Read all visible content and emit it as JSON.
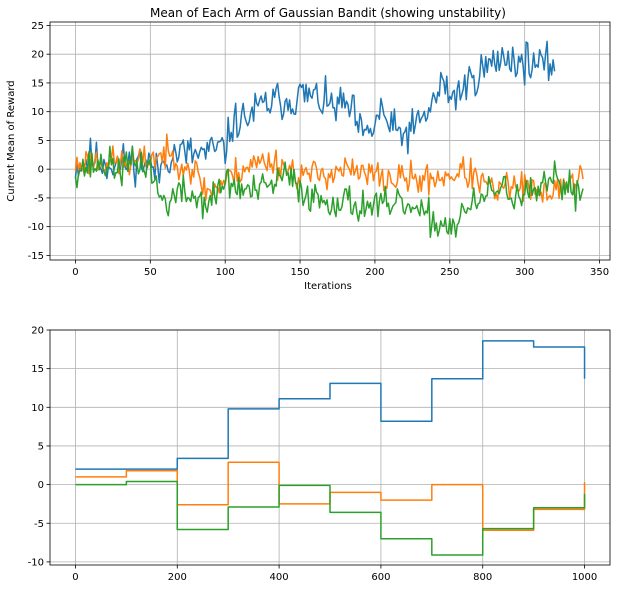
{
  "chart_data": [
    {
      "type": "line",
      "title": "Mean of Each Arm of Gaussian Bandit (showing unstability)",
      "xlabel": "Iterations",
      "ylabel": "Current Mean of Reward",
      "xlim": [
        -17,
        357
      ],
      "ylim": [
        -15.8,
        25.6
      ],
      "xticks": [
        0,
        50,
        100,
        150,
        200,
        250,
        300,
        350
      ],
      "yticks": [
        -15,
        -10,
        -5,
        0,
        5,
        10,
        15,
        20,
        25
      ],
      "grid": true,
      "series": [
        {
          "color": "#1f77b4",
          "n": 321,
          "anchors": [
            [
              0,
              0.5
            ],
            [
              10,
              2
            ],
            [
              20,
              1
            ],
            [
              30,
              1
            ],
            [
              40,
              1.5
            ],
            [
              50,
              1
            ],
            [
              55,
              -1
            ],
            [
              60,
              2
            ],
            [
              70,
              3
            ],
            [
              80,
              2.5
            ],
            [
              90,
              3
            ],
            [
              95,
              3.5
            ],
            [
              100,
              3.5
            ],
            [
              105,
              8
            ],
            [
              115,
              9
            ],
            [
              125,
              11
            ],
            [
              135,
              12
            ],
            [
              145,
              12
            ],
            [
              150,
              13
            ],
            [
              160,
              12.5
            ],
            [
              170,
              11
            ],
            [
              180,
              11
            ],
            [
              185,
              10
            ],
            [
              190,
              6.5
            ],
            [
              195,
              5.5
            ],
            [
              200,
              8
            ],
            [
              205,
              10.5
            ],
            [
              210,
              7
            ],
            [
              220,
              6
            ],
            [
              230,
              8
            ],
            [
              240,
              12
            ],
            [
              245,
              15
            ],
            [
              250,
              13
            ],
            [
              255,
              13
            ],
            [
              262,
              15
            ],
            [
              270,
              17
            ],
            [
              280,
              18.5
            ],
            [
              290,
              20
            ],
            [
              295,
              18
            ],
            [
              300,
              19
            ],
            [
              310,
              18
            ],
            [
              320,
              18
            ]
          ],
          "noise": 2.8,
          "seed": 11
        },
        {
          "color": "#ff7f0e",
          "n": 340,
          "anchors": [
            [
              0,
              0.5
            ],
            [
              10,
              1.5
            ],
            [
              20,
              1.5
            ],
            [
              30,
              1
            ],
            [
              40,
              1
            ],
            [
              50,
              2
            ],
            [
              60,
              2.5
            ],
            [
              70,
              1.5
            ],
            [
              80,
              -0.5
            ],
            [
              88,
              -4
            ],
            [
              95,
              -3
            ],
            [
              100,
              -2
            ],
            [
              110,
              0
            ],
            [
              120,
              1
            ],
            [
              130,
              1.5
            ],
            [
              140,
              0.5
            ],
            [
              150,
              -1
            ],
            [
              160,
              -1
            ],
            [
              170,
              -0.5
            ],
            [
              180,
              0
            ],
            [
              190,
              -1
            ],
            [
              200,
              -1
            ],
            [
              210,
              -2
            ],
            [
              220,
              -1.5
            ],
            [
              230,
              -2
            ],
            [
              240,
              -1.5
            ],
            [
              250,
              -1
            ],
            [
              260,
              -0.5
            ],
            [
              270,
              -2
            ],
            [
              280,
              -4
            ],
            [
              290,
              -3
            ],
            [
              300,
              -3
            ],
            [
              310,
              -5
            ],
            [
              320,
              -3
            ],
            [
              330,
              -2.5
            ],
            [
              340,
              -0.5
            ]
          ],
          "noise": 2.2,
          "seed": 23
        },
        {
          "color": "#2ca02c",
          "n": 340,
          "anchors": [
            [
              0,
              0
            ],
            [
              10,
              0.5
            ],
            [
              20,
              1
            ],
            [
              30,
              0
            ],
            [
              40,
              1
            ],
            [
              50,
              0.5
            ],
            [
              55,
              -4
            ],
            [
              60,
              -6
            ],
            [
              70,
              -4
            ],
            [
              80,
              -5
            ],
            [
              90,
              -6
            ],
            [
              100,
              -2
            ],
            [
              110,
              -3.5
            ],
            [
              120,
              -4
            ],
            [
              130,
              -3
            ],
            [
              140,
              -1
            ],
            [
              150,
              -3.5
            ],
            [
              160,
              -5
            ],
            [
              170,
              -5.5
            ],
            [
              180,
              -5.5
            ],
            [
              190,
              -6.5
            ],
            [
              200,
              -6
            ],
            [
              210,
              -7
            ],
            [
              220,
              -6
            ],
            [
              230,
              -8
            ],
            [
              240,
              -9
            ],
            [
              250,
              -10
            ],
            [
              255,
              -9
            ],
            [
              260,
              -7
            ],
            [
              270,
              -6
            ],
            [
              280,
              -3
            ],
            [
              290,
              -4
            ],
            [
              300,
              -5
            ],
            [
              310,
              -4
            ],
            [
              320,
              -2
            ],
            [
              330,
              -3
            ],
            [
              340,
              -4.5
            ]
          ],
          "noise": 2.4,
          "seed": 37
        }
      ]
    },
    {
      "type": "line",
      "title": "",
      "xlabel": "",
      "ylabel": "",
      "xlim": [
        -50,
        1050
      ],
      "ylim": [
        -10.4,
        20
      ],
      "xticks": [
        0,
        200,
        400,
        600,
        800,
        1000
      ],
      "yticks": [
        -10,
        -5,
        0,
        5,
        10,
        15,
        20
      ],
      "grid": true,
      "series": [
        {
          "color": "#1f77b4",
          "steps": [
            [
              0,
              2
            ],
            [
              100,
              2
            ],
            [
              200,
              3.4
            ],
            [
              300,
              9.8
            ],
            [
              400,
              11.1
            ],
            [
              500,
              13.1
            ],
            [
              600,
              8.2
            ],
            [
              700,
              13.7
            ],
            [
              800,
              18.6
            ],
            [
              900,
              17.8
            ]
          ],
          "end": 1000,
          "end_value": 13.7
        },
        {
          "color": "#ff7f0e",
          "steps": [
            [
              0,
              1
            ],
            [
              100,
              1.8
            ],
            [
              200,
              -2.6
            ],
            [
              300,
              2.9
            ],
            [
              400,
              -2.5
            ],
            [
              500,
              -1
            ],
            [
              600,
              -2
            ],
            [
              700,
              0
            ],
            [
              800,
              -5.9
            ],
            [
              900,
              -3.2
            ]
          ],
          "end": 1000,
          "end_value": 0.3
        },
        {
          "color": "#2ca02c",
          "steps": [
            [
              0,
              0
            ],
            [
              100,
              0.4
            ],
            [
              200,
              -5.8
            ],
            [
              300,
              -2.9
            ],
            [
              400,
              -0.1
            ],
            [
              500,
              -3.6
            ],
            [
              600,
              -7
            ],
            [
              700,
              -9.1
            ],
            [
              800,
              -5.7
            ],
            [
              900,
              -3
            ]
          ],
          "end": 1000,
          "end_value": -1.2
        }
      ]
    }
  ]
}
